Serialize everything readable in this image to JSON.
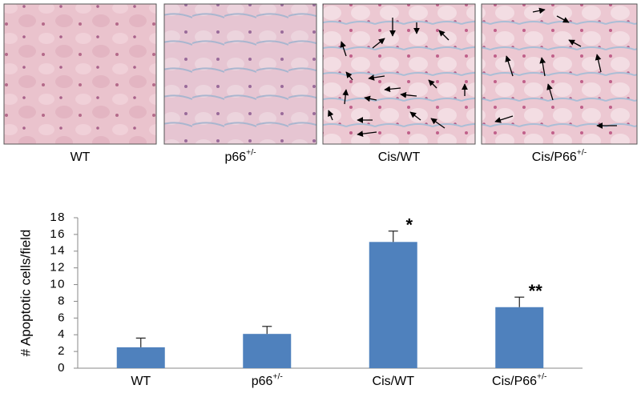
{
  "panels": [
    {
      "label": "WT"
    },
    {
      "label": "p66",
      "sup": "+/-"
    },
    {
      "label": "Cis/WT"
    },
    {
      "label": "Cis/P66",
      "sup": "+/-"
    }
  ],
  "chart_data": {
    "type": "bar",
    "y_label": "# Apoptotic cells/field",
    "categories": [
      "WT",
      "p66",
      "Cis/WT",
      "Cis/P66"
    ],
    "category_superscripts": [
      null,
      "+/-",
      null,
      "+/-"
    ],
    "values": [
      2.5,
      4.1,
      15.1,
      7.3
    ],
    "errors": [
      1.1,
      0.9,
      1.3,
      1.2
    ],
    "color": "#4f81bd",
    "ylim": [
      0,
      18
    ],
    "yticks": [
      0,
      2,
      4,
      6,
      8,
      10,
      12,
      14,
      16,
      18
    ],
    "annotations": [
      {
        "text": "*",
        "category": "Cis/WT"
      },
      {
        "text": "**",
        "category": "Cis/P66"
      }
    ]
  }
}
